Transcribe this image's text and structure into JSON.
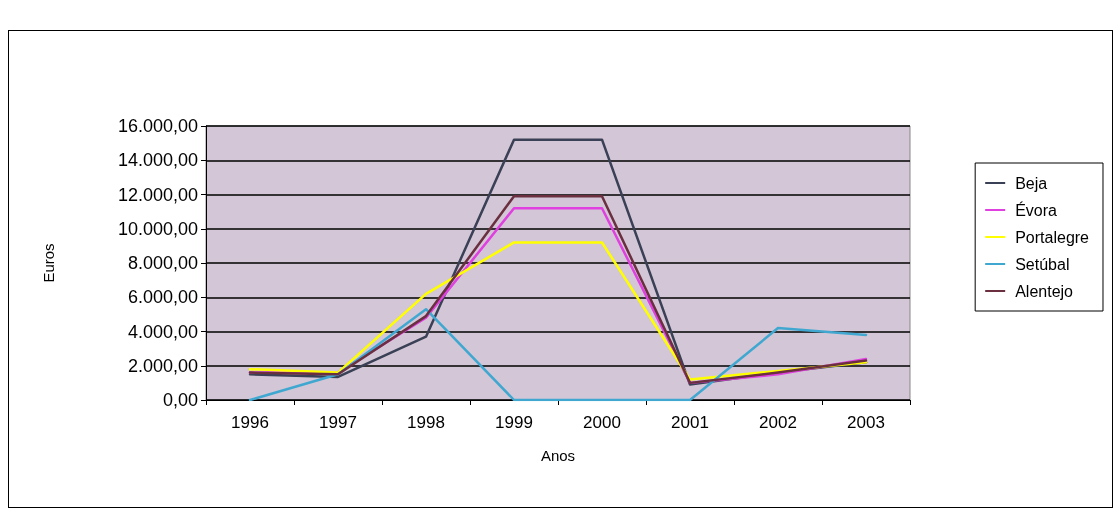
{
  "chart_data": {
    "type": "line",
    "xlabel": "Anos",
    "ylabel": "Euros",
    "categories": [
      "1996",
      "1997",
      "1998",
      "1999",
      "2000",
      "2001",
      "2002",
      "2003"
    ],
    "series": [
      {
        "name": "Beja",
        "color": "#3a4055",
        "values": [
          1500,
          1350,
          3700,
          15200,
          15200,
          900,
          1600,
          2200
        ]
      },
      {
        "name": "Évora",
        "color": "#e040e0",
        "values": [
          1600,
          1600,
          4800,
          11200,
          11200,
          1000,
          1500,
          2400
        ]
      },
      {
        "name": "Portalegre",
        "color": "#ffff00",
        "values": [
          1800,
          1600,
          6200,
          9200,
          9200,
          1200,
          1700,
          2200
        ]
      },
      {
        "name": "Setúbal",
        "color": "#40a8d0",
        "values": [
          0,
          1500,
          5300,
          0,
          0,
          0,
          4200,
          3800
        ]
      },
      {
        "name": "Alentejo",
        "color": "#6a3040",
        "values": [
          1600,
          1500,
          4900,
          11900,
          11900,
          1000,
          1600,
          2300
        ]
      }
    ],
    "ylim": [
      0,
      16000
    ],
    "yticks": [
      {
        "value": 0,
        "label": "0,00"
      },
      {
        "value": 2000,
        "label": "2.000,00"
      },
      {
        "value": 4000,
        "label": "4.000,00"
      },
      {
        "value": 6000,
        "label": "6.000,00"
      },
      {
        "value": 8000,
        "label": "8.000,00"
      },
      {
        "value": 10000,
        "label": "10.000,00"
      },
      {
        "value": 12000,
        "label": "12.000,00"
      },
      {
        "value": 14000,
        "label": "14.000,00"
      },
      {
        "value": 16000,
        "label": "16.000,00"
      }
    ],
    "grid": "y",
    "legend": "right",
    "marker": "none",
    "line_style": "solid"
  }
}
